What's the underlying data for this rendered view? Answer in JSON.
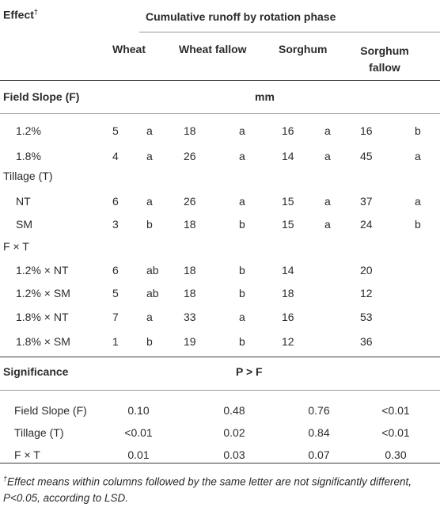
{
  "header": {
    "effect_label": "Effect",
    "effect_marker": "†",
    "group_title": "Cumulative runoff by rotation phase",
    "columns": [
      "Wheat",
      "Wheat fallow",
      "Sorghum",
      "Sorghum\nfallow"
    ],
    "col_sorghum_fallow_line1": "Sorghum",
    "col_sorghum_fallow_line2": "fallow"
  },
  "section_runoff": {
    "label": "Field Slope (F)",
    "unit": "mm"
  },
  "rows": [
    {
      "label": "1.2%",
      "indent": true,
      "w": "5",
      "wl": "a",
      "wf": "18",
      "wfl": "a",
      "s": "16",
      "sl": "a",
      "sf": "16",
      "sfl": "b"
    },
    {
      "label": "1.8%",
      "indent": true,
      "w": "4",
      "wl": "a",
      "wf": "26",
      "wfl": "a",
      "s": "14",
      "sl": "a",
      "sf": "45",
      "sfl": "a"
    },
    {
      "label": "Tillage (T)",
      "indent": false,
      "w": "",
      "wl": "",
      "wf": "",
      "wfl": "",
      "s": "",
      "sl": "",
      "sf": "",
      "sfl": ""
    },
    {
      "label": "NT",
      "indent": true,
      "w": "6",
      "wl": "a",
      "wf": "26",
      "wfl": "a",
      "s": "15",
      "sl": "a",
      "sf": "37",
      "sfl": "a"
    },
    {
      "label": "SM",
      "indent": true,
      "w": "3",
      "wl": "b",
      "wf": "18",
      "wfl": "b",
      "s": "15",
      "sl": "a",
      "sf": "24",
      "sfl": "b"
    },
    {
      "label": "F × T",
      "indent": false,
      "w": "",
      "wl": "",
      "wf": "",
      "wfl": "",
      "s": "",
      "sl": "",
      "sf": "",
      "sfl": ""
    },
    {
      "label": "1.2% × NT",
      "indent": true,
      "w": "6",
      "wl": "ab",
      "wf": "18",
      "wfl": "b",
      "s": "14",
      "sl": "",
      "sf": "20",
      "sfl": ""
    },
    {
      "label": "1.2% × SM",
      "indent": true,
      "w": "5",
      "wl": "ab",
      "wf": "18",
      "wfl": "b",
      "s": "18",
      "sl": "",
      "sf": "12",
      "sfl": ""
    },
    {
      "label": "1.8% × NT",
      "indent": true,
      "w": "7",
      "wl": "a",
      "wf": "33",
      "wfl": "a",
      "s": "16",
      "sl": "",
      "sf": "53",
      "sfl": ""
    },
    {
      "label": "1.8% × SM",
      "indent": true,
      "w": "1",
      "wl": "b",
      "wf": "19",
      "wfl": "b",
      "s": "12",
      "sl": "",
      "sf": "36",
      "sfl": ""
    }
  ],
  "section_sig": {
    "label": "Significance",
    "unit": "P > F"
  },
  "sig_rows": [
    {
      "label": "Field Slope (F)",
      "w": "0.10",
      "wf": "0.48",
      "s": "0.76",
      "sf": "<0.01"
    },
    {
      "label": "Tillage (T)",
      "w": "<0.01",
      "wf": "0.02",
      "s": "0.84",
      "sf": "<0.01"
    },
    {
      "label": "F × T",
      "w": "0.01",
      "wf": "0.03",
      "s": "0.07",
      "sf": "0.30"
    }
  ],
  "footnote": {
    "marker": "†",
    "text": "Effect means within columns followed by the same letter are not significantly different, P<0.05, according to LSD."
  }
}
